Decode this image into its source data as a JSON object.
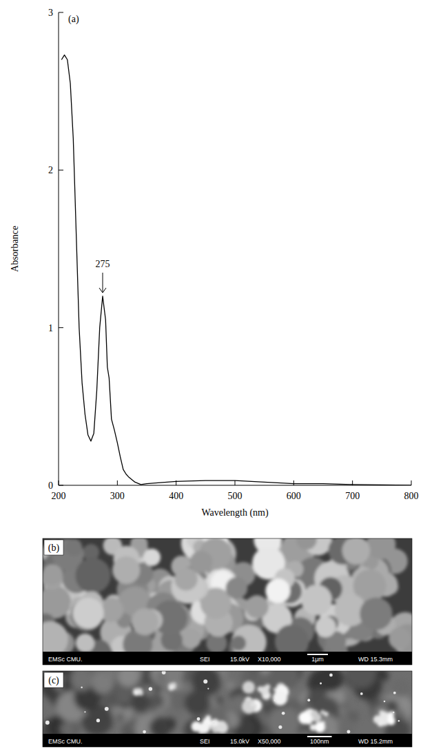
{
  "chart_data": {
    "type": "line",
    "panel_label": "(a)",
    "x_label": "Wavelength (nm)",
    "y_label": "Absorbance",
    "x": [
      205,
      210,
      215,
      220,
      225,
      230,
      235,
      240,
      245,
      250,
      255,
      260,
      265,
      270,
      275,
      280,
      283,
      286,
      290,
      295,
      300,
      305,
      310,
      315,
      320,
      330,
      340,
      350,
      400,
      450,
      500,
      550,
      600,
      650,
      700,
      750,
      800
    ],
    "values": [
      2.7,
      2.73,
      2.7,
      2.55,
      2.2,
      1.6,
      1.0,
      0.65,
      0.45,
      0.32,
      0.28,
      0.33,
      0.6,
      1.0,
      1.2,
      1.05,
      0.75,
      0.68,
      0.42,
      0.35,
      0.27,
      0.18,
      0.1,
      0.07,
      0.05,
      0.02,
      0.005,
      0.01,
      0.025,
      0.03,
      0.03,
      0.02,
      0.01,
      0.01,
      0.005,
      0.003,
      0
    ],
    "color": "#000000",
    "xlim": [
      200,
      800
    ],
    "xticks": [
      200,
      300,
      400,
      500,
      600,
      700,
      800
    ],
    "ylim": [
      0,
      3
    ],
    "yticks": [
      0,
      1,
      2,
      3
    ],
    "annotations": [
      {
        "text": "275",
        "x": 275
      }
    ]
  },
  "images": [
    {
      "panel_label": "(b)",
      "info_bar": [
        "EMSc CMU.",
        "SEI",
        "15.0kV",
        "X10,000",
        "1μm",
        "WD 15.3mm"
      ]
    },
    {
      "panel_label": "(c)",
      "info_bar": [
        "EMSc CMU.",
        "SEI",
        "15.0kV",
        "X50,000",
        "100nm",
        "WD 15.2mm"
      ]
    }
  ]
}
